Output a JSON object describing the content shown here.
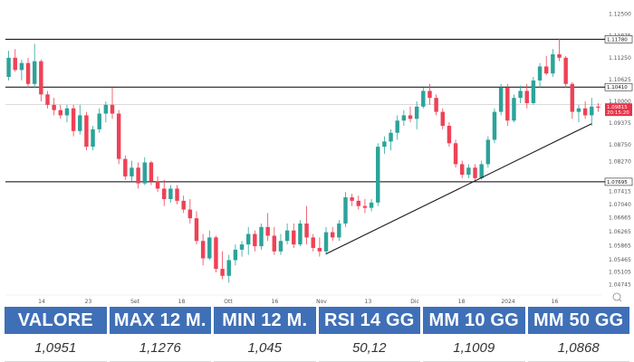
{
  "chart_data": {
    "type": "candlestick",
    "instrument_shown": "EUR/USD daily candles",
    "y_ticks": [
      "1.12500",
      "1.11875",
      "1.11250",
      "1.10625",
      "1.10000",
      "1.09375",
      "1.08750",
      "1.08270",
      "1.07415",
      "1.07040",
      "1.06665",
      "1.06265",
      "1.05865",
      "1.05465",
      "1.05105",
      "1.04745"
    ],
    "x_ticks": [
      "14",
      "23",
      "Set",
      "18",
      "Ott",
      "16",
      "Nov",
      "13",
      "Dic",
      "18",
      "2024",
      "16"
    ],
    "ylim": [
      1.0445,
      1.1275
    ],
    "levels": [
      {
        "value": 1.1178,
        "label": "1.11780",
        "color": "#000000"
      },
      {
        "value": 1.1041,
        "label": "1.10410",
        "color": "#000000"
      },
      {
        "value": 1.07695,
        "label": "1.07695",
        "color": "#000000"
      }
    ],
    "current_price": {
      "value": 1.09815,
      "label": "1.09815",
      "sub_label": "20:15:20",
      "color": "#e8334a"
    },
    "price_line": 1.0991,
    "trendline": {
      "from": [
        49,
        1.0563
      ],
      "to": [
        90,
        1.0936
      ]
    },
    "candles": [
      [
        1.107,
        1.1145,
        1.106,
        1.1125
      ],
      [
        1.1125,
        1.115,
        1.1085,
        1.109
      ],
      [
        1.109,
        1.112,
        1.106,
        1.111
      ],
      [
        1.111,
        1.1125,
        1.104,
        1.105
      ],
      [
        1.105,
        1.1165,
        1.104,
        1.1115
      ],
      [
        1.1115,
        1.112,
        1.1,
        1.102
      ],
      [
        1.102,
        1.103,
        1.098,
        1.099
      ],
      [
        1.099,
        1.101,
        1.096,
        1.0975
      ],
      [
        1.0975,
        1.099,
        1.095,
        1.096
      ],
      [
        1.096,
        1.099,
        1.094,
        1.098
      ],
      [
        1.098,
        1.099,
        1.09,
        1.0915
      ],
      [
        1.0915,
        1.099,
        1.0905,
        1.096
      ],
      [
        1.096,
        1.097,
        1.086,
        1.087
      ],
      [
        1.087,
        1.093,
        1.086,
        1.092
      ],
      [
        1.092,
        1.098,
        1.091,
        1.0965
      ],
      [
        1.0965,
        1.1,
        1.094,
        1.099
      ],
      [
        1.099,
        1.104,
        1.095,
        1.0965
      ],
      [
        1.0965,
        1.0975,
        1.082,
        1.0835
      ],
      [
        1.0835,
        1.0845,
        1.0775,
        1.0785
      ],
      [
        1.0785,
        1.083,
        1.077,
        1.081
      ],
      [
        1.081,
        1.0825,
        1.075,
        1.0765
      ],
      [
        1.0765,
        1.084,
        1.076,
        1.0825
      ],
      [
        1.0825,
        1.083,
        1.076,
        1.077
      ],
      [
        1.077,
        1.0785,
        1.074,
        1.075
      ],
      [
        1.075,
        1.0775,
        1.07,
        1.072
      ],
      [
        1.072,
        1.076,
        1.071,
        1.075
      ],
      [
        1.075,
        1.076,
        1.0705,
        1.0715
      ],
      [
        1.0715,
        1.073,
        1.068,
        1.069
      ],
      [
        1.069,
        1.072,
        1.065,
        1.0665
      ],
      [
        1.0665,
        1.0685,
        1.059,
        1.06
      ],
      [
        1.06,
        1.062,
        1.053,
        1.055
      ],
      [
        1.055,
        1.063,
        1.0545,
        1.061
      ],
      [
        1.061,
        1.0615,
        1.051,
        1.052
      ],
      [
        1.052,
        1.057,
        1.049,
        1.05
      ],
      [
        1.05,
        1.056,
        1.048,
        1.0545
      ],
      [
        1.0545,
        1.059,
        1.053,
        1.0575
      ],
      [
        1.0575,
        1.06,
        1.0555,
        1.059
      ],
      [
        1.059,
        1.064,
        1.056,
        1.062
      ],
      [
        1.062,
        1.063,
        1.057,
        1.0585
      ],
      [
        1.0585,
        1.065,
        1.0575,
        1.064
      ],
      [
        1.064,
        1.068,
        1.06,
        1.0615
      ],
      [
        1.0615,
        1.064,
        1.056,
        1.057
      ],
      [
        1.057,
        1.062,
        1.056,
        1.06
      ],
      [
        1.06,
        1.065,
        1.059,
        1.063
      ],
      [
        1.063,
        1.065,
        1.058,
        1.059
      ],
      [
        1.059,
        1.066,
        1.0585,
        1.065
      ],
      [
        1.065,
        1.07,
        1.059,
        1.061
      ],
      [
        1.061,
        1.062,
        1.057,
        1.058
      ],
      [
        1.058,
        1.061,
        1.0555,
        1.057
      ],
      [
        1.057,
        1.064,
        1.056,
        1.0625
      ],
      [
        1.0625,
        1.064,
        1.06,
        1.061
      ],
      [
        1.061,
        1.066,
        1.06,
        1.065
      ],
      [
        1.065,
        1.074,
        1.064,
        1.0725
      ],
      [
        1.0725,
        1.0735,
        1.07,
        1.0715
      ],
      [
        1.0715,
        1.073,
        1.069,
        1.07
      ],
      [
        1.07,
        1.072,
        1.068,
        1.0695
      ],
      [
        1.0695,
        1.072,
        1.0685,
        1.071
      ],
      [
        1.071,
        1.088,
        1.07,
        1.087
      ],
      [
        1.087,
        1.09,
        1.085,
        1.0885
      ],
      [
        1.0885,
        1.092,
        1.086,
        1.091
      ],
      [
        1.091,
        1.096,
        1.089,
        1.0945
      ],
      [
        1.0945,
        1.0975,
        1.093,
        1.096
      ],
      [
        1.096,
        1.0985,
        1.094,
        1.095
      ],
      [
        1.095,
        1.1,
        1.092,
        1.0985
      ],
      [
        1.0985,
        1.104,
        1.098,
        1.103
      ],
      [
        1.103,
        1.105,
        1.099,
        1.101
      ],
      [
        1.101,
        1.102,
        1.096,
        1.097
      ],
      [
        1.097,
        1.098,
        1.092,
        1.093
      ],
      [
        1.093,
        1.094,
        1.087,
        1.088
      ],
      [
        1.088,
        1.089,
        1.081,
        1.082
      ],
      [
        1.082,
        1.083,
        1.078,
        1.079
      ],
      [
        1.079,
        1.082,
        1.078,
        1.081
      ],
      [
        1.081,
        1.082,
        1.077,
        1.078
      ],
      [
        1.078,
        1.083,
        1.0775,
        1.082
      ],
      [
        1.082,
        1.09,
        1.081,
        1.089
      ],
      [
        1.089,
        1.098,
        1.088,
        1.097
      ],
      [
        1.097,
        1.105,
        1.096,
        1.104
      ],
      [
        1.104,
        1.105,
        1.093,
        1.0945
      ],
      [
        1.0945,
        1.102,
        1.094,
        1.101
      ],
      [
        1.101,
        1.1045,
        1.0995,
        1.103
      ],
      [
        1.103,
        1.105,
        1.098,
        1.0995
      ],
      [
        1.0995,
        1.107,
        1.099,
        1.106
      ],
      [
        1.106,
        1.111,
        1.104,
        1.11
      ],
      [
        1.11,
        1.113,
        1.1075,
        1.108
      ],
      [
        1.108,
        1.115,
        1.107,
        1.1135
      ],
      [
        1.1135,
        1.118,
        1.1115,
        1.1125
      ],
      [
        1.1125,
        1.113,
        1.104,
        1.105
      ],
      [
        1.105,
        1.1055,
        1.095,
        1.097
      ],
      [
        1.097,
        1.099,
        1.094,
        1.098
      ],
      [
        1.098,
        1.1,
        1.095,
        1.096
      ],
      [
        1.096,
        1.101,
        1.093,
        1.0985
      ],
      [
        1.0985,
        1.0995,
        1.097,
        1.0982
      ]
    ]
  },
  "stats": {
    "headers": [
      "VALORE",
      "MAX 12 M.",
      "MIN 12 M.",
      "RSI 14 GG",
      "MM 10 GG",
      "MM 50 GG"
    ],
    "values": [
      "1,0951",
      "1,1276",
      "1,045",
      "50,12",
      "1,1009",
      "1,0868"
    ]
  },
  "colors": {
    "up": "#2ca39a",
    "down": "#ee4256",
    "header_bg": "#3f6fb6"
  }
}
